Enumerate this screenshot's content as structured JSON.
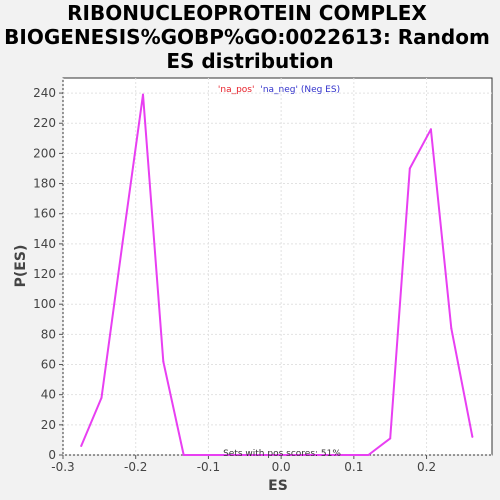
{
  "chart_data": {
    "type": "line",
    "title_lines": [
      "RIBONUCLEOPROTEIN COMPLEX",
      "BIOGENESIS%GOBP%GO:0022613: Random",
      "ES distribution"
    ],
    "xlabel": "ES",
    "ylabel": "P(ES)",
    "xlim": [
      -0.3,
      0.29
    ],
    "ylim": [
      0,
      250
    ],
    "x_ticks": [
      -0.3,
      -0.2,
      -0.1,
      0.0,
      0.1,
      0.2
    ],
    "x_tick_labels": [
      "-0.3",
      "-0.2",
      "-0.1",
      "0.0",
      "0.1",
      "0.2"
    ],
    "y_ticks": [
      0,
      20,
      40,
      60,
      80,
      100,
      120,
      140,
      160,
      180,
      200,
      220,
      240
    ],
    "y_tick_labels": [
      "0",
      "20",
      "40",
      "60",
      "80",
      "100",
      "120",
      "140",
      "160",
      "180",
      "200",
      "220",
      "240"
    ],
    "grid": true,
    "legend": {
      "placement": "top-center",
      "entries": [
        {
          "label": "'na_pos'",
          "color": "#e8202a"
        },
        {
          "label": "'na_neg' (Neg ES)",
          "color": "#3333cc"
        }
      ]
    },
    "annotation": "Sets with pos scores: 51%",
    "series": [
      {
        "color": "#e83ff2",
        "x": [
          -0.275,
          -0.247,
          -0.218,
          -0.19,
          -0.162,
          -0.134,
          -0.106,
          -0.078,
          0.12,
          0.15,
          0.177,
          0.206,
          0.234,
          0.263
        ],
        "y": [
          6,
          38,
          141,
          239,
          62,
          0,
          0,
          0,
          0,
          11,
          190,
          216,
          84,
          12
        ]
      }
    ]
  }
}
